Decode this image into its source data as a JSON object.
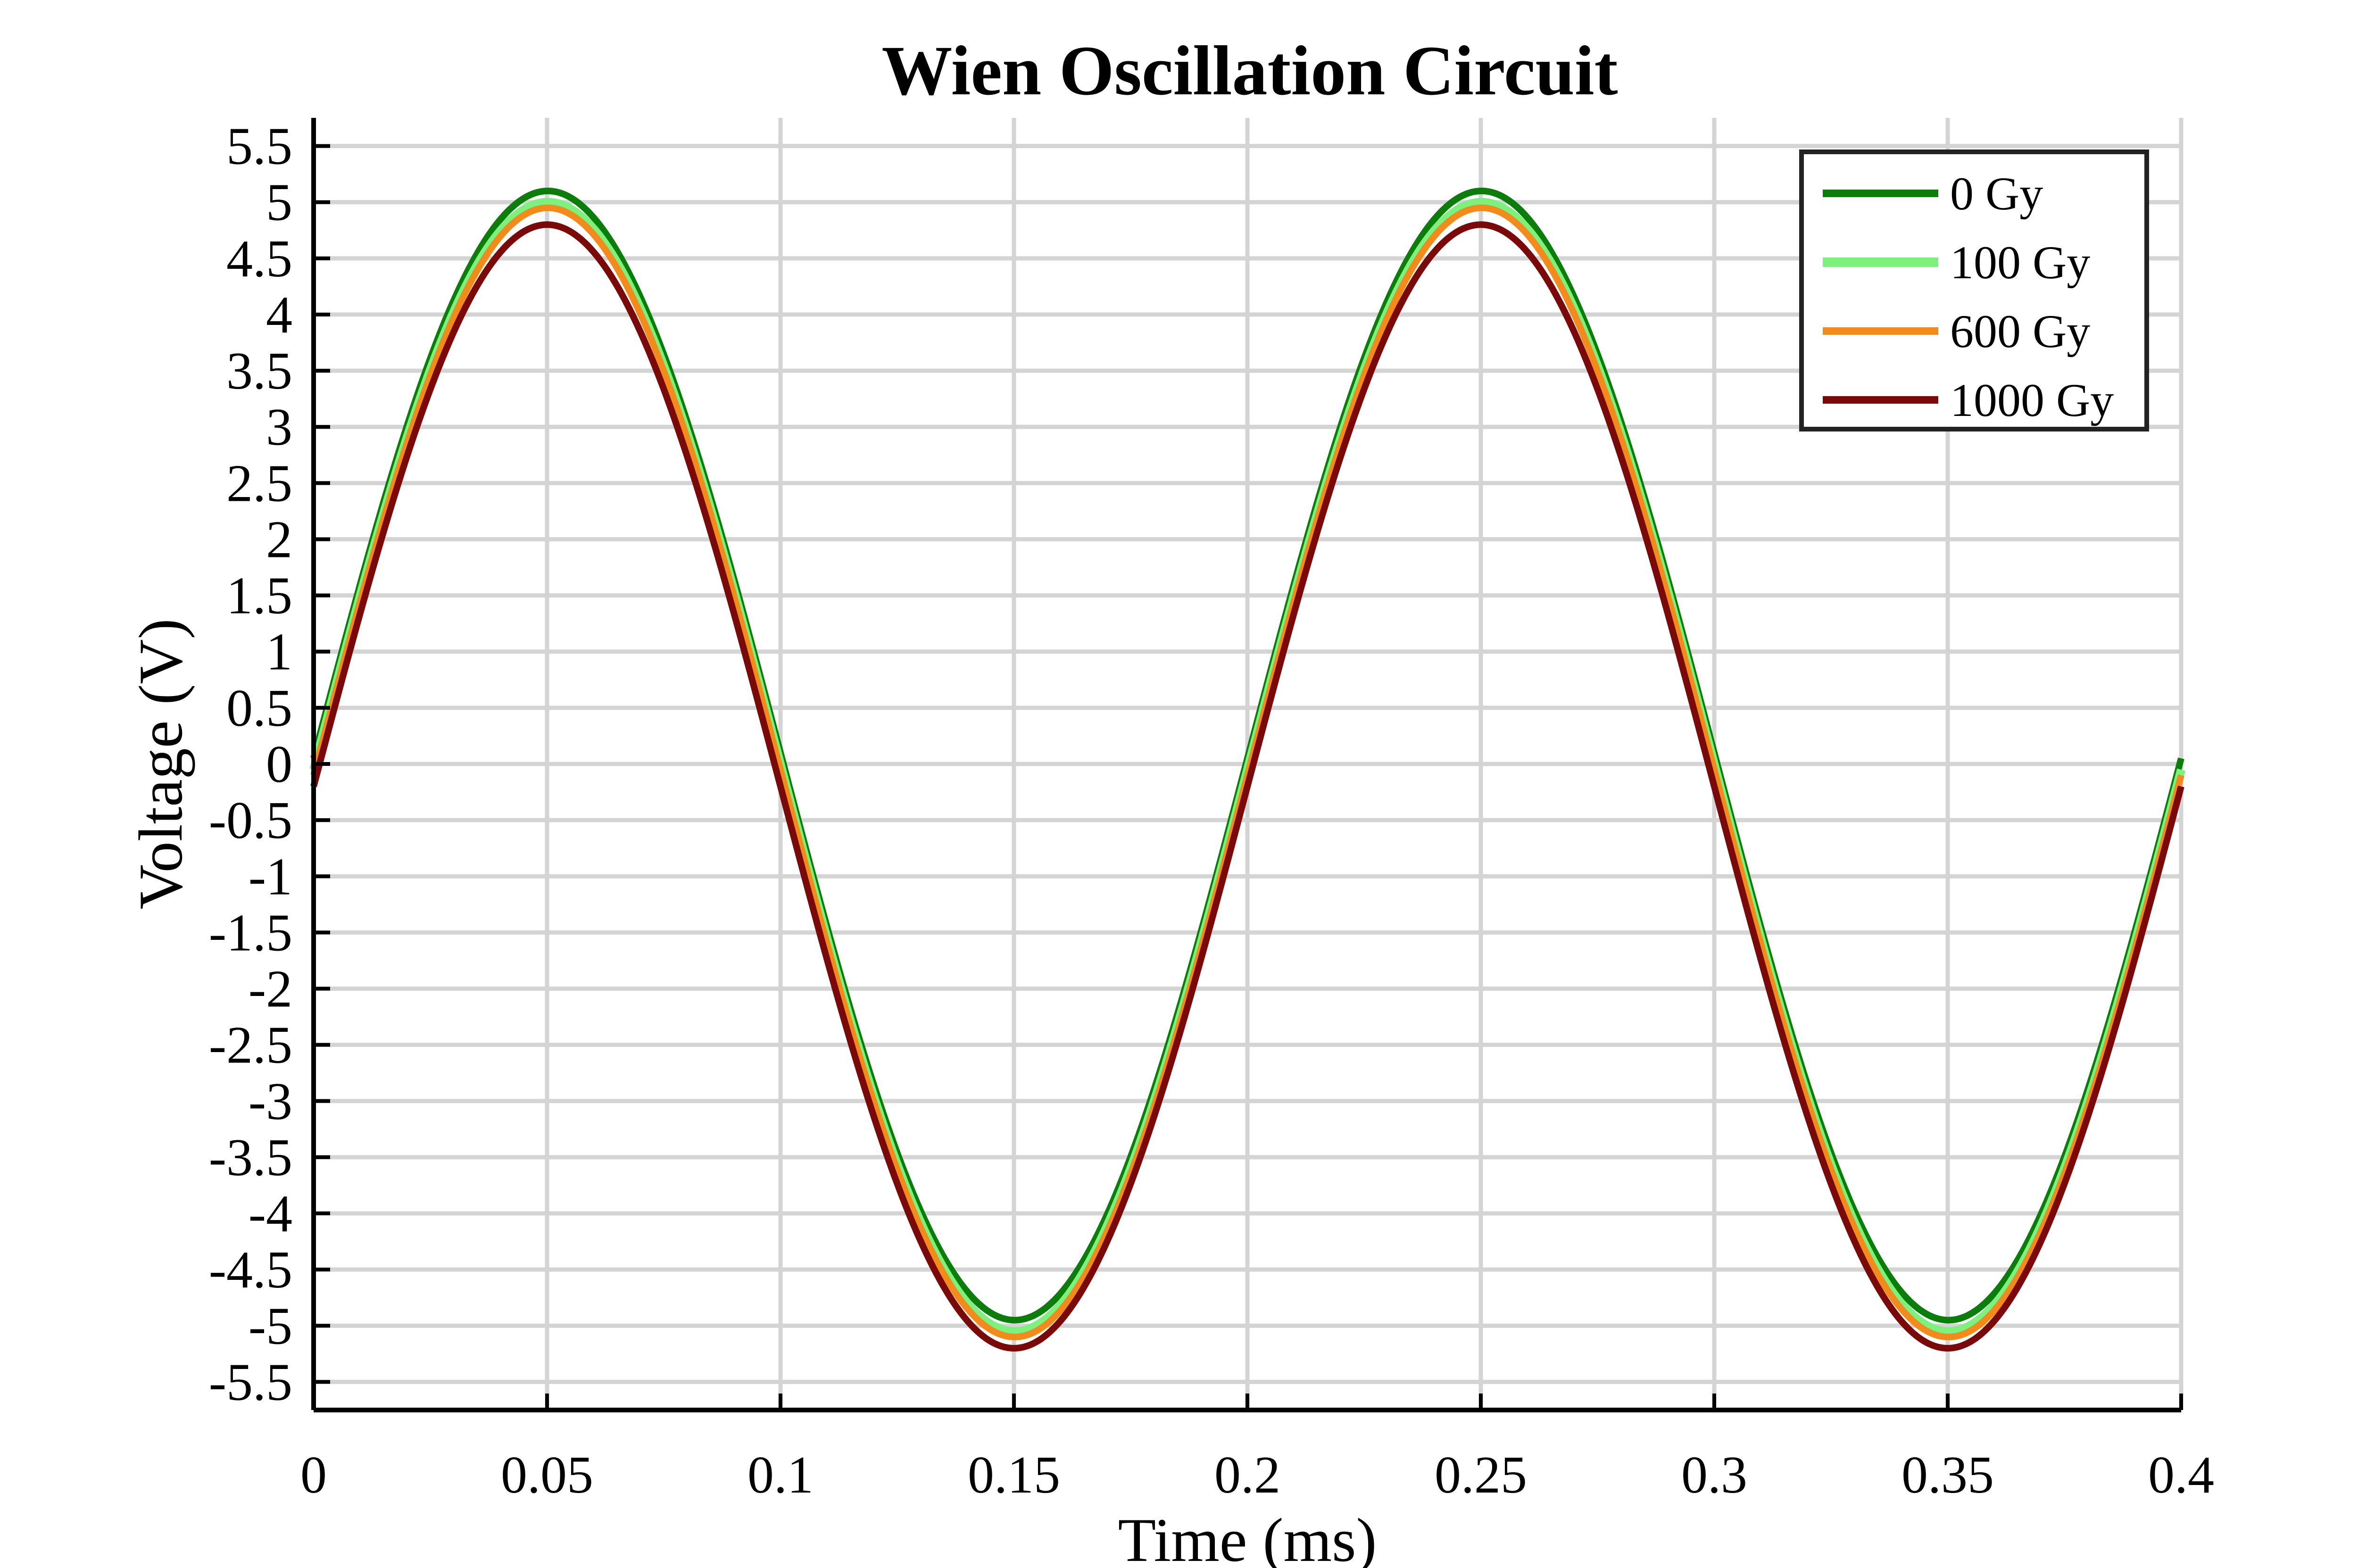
{
  "chart_data": {
    "type": "line",
    "title": "Wien Oscillation Circuit",
    "xlabel": "Time (ms)",
    "ylabel": "Voltage (V)",
    "xlim": [
      0,
      0.4
    ],
    "ylim": [
      -5.5,
      5.5
    ],
    "x_ticks": [
      "0",
      "0.05",
      "0.1",
      "0.15",
      "0.2",
      "0.25",
      "0.3",
      "0.35",
      "0.4"
    ],
    "y_ticks": [
      "5.5",
      "5",
      "4.5",
      "4",
      "3.5",
      "3",
      "2.5",
      "2",
      "1.5",
      "1",
      "0.5",
      "0",
      "-0.5",
      "-1",
      "-1.5",
      "-2",
      "-2.5",
      "-3",
      "-3.5",
      "-4",
      "-4.5",
      "-5",
      "-5.5"
    ],
    "grid": true,
    "legend_position": "top-right",
    "waveform": "sine",
    "period_ms": 0.2,
    "series": [
      {
        "name": "0 Gy",
        "color": "#0a7d0a",
        "peak": 5.1,
        "trough": -4.95,
        "start": 0.05,
        "line_width": 14
      },
      {
        "name": "100 Gy",
        "color": "#7cf27c",
        "peak": 5.0,
        "trough": -5.05,
        "start": -0.05,
        "line_width": 18
      },
      {
        "name": "600 Gy",
        "color": "#f28a1c",
        "peak": 4.95,
        "trough": -5.1,
        "start": -0.1,
        "line_width": 14
      },
      {
        "name": "1000 Gy",
        "color": "#7a0a0a",
        "peak": 4.8,
        "trough": -5.2,
        "start": -0.2,
        "line_width": 14
      }
    ]
  }
}
